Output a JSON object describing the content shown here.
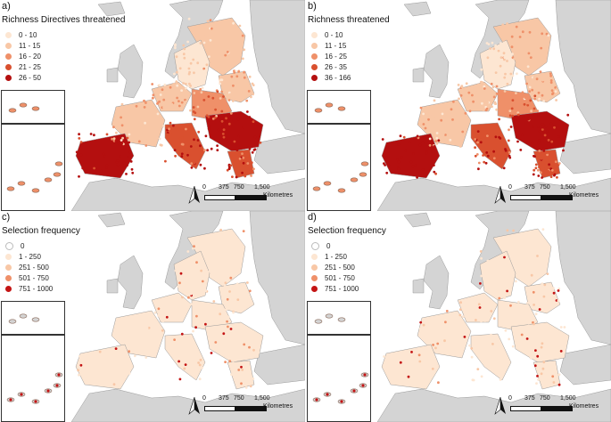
{
  "colors": {
    "sea": "#ffffff",
    "land_outside": "#d4d4d4",
    "border": "#9a9a9a",
    "inset_border": "#333333"
  },
  "panels": [
    {
      "label": "a)",
      "legend_title": "Richness Directives threatened",
      "legend": [
        {
          "label": "0 - 10",
          "color": "#fde6d2"
        },
        {
          "label": "11 - 15",
          "color": "#f8c7a6"
        },
        {
          "label": "16 - 20",
          "color": "#ef9069"
        },
        {
          "label": "21 - 25",
          "color": "#d9502f"
        },
        {
          "label": "26 - 50",
          "color": "#b40f0f"
        }
      ]
    },
    {
      "label": "b)",
      "legend_title": "Richness threatened",
      "legend": [
        {
          "label": "0 - 10",
          "color": "#fde6d2"
        },
        {
          "label": "11 - 15",
          "color": "#f8c7a6"
        },
        {
          "label": "16 - 25",
          "color": "#ef9069"
        },
        {
          "label": "26 - 35",
          "color": "#d9502f"
        },
        {
          "label": "36 - 166",
          "color": "#b40f0f"
        }
      ]
    },
    {
      "label": "c)",
      "legend_title": "Selection frequency",
      "legend": [
        {
          "label": "0",
          "color": "#ffffff"
        },
        {
          "label": "1 - 250",
          "color": "#fde6d2"
        },
        {
          "label": "251 - 500",
          "color": "#f8c7a6"
        },
        {
          "label": "501 - 750",
          "color": "#ef9069"
        },
        {
          "label": "751 - 1000",
          "color": "#c41414"
        }
      ]
    },
    {
      "label": "d)",
      "legend_title": "Selection frequency",
      "legend": [
        {
          "label": "0",
          "color": "#ffffff"
        },
        {
          "label": "1 - 250",
          "color": "#fde6d2"
        },
        {
          "label": "251 - 500",
          "color": "#f8c7a6"
        },
        {
          "label": "501 - 750",
          "color": "#ef9069"
        },
        {
          "label": "751 - 1000",
          "color": "#c41414"
        }
      ]
    }
  ],
  "scale": {
    "ticks": [
      "0",
      "375",
      "750",
      "1,500"
    ],
    "unit": "Kilometres",
    "north_symbol": "north-arrow-icon"
  }
}
